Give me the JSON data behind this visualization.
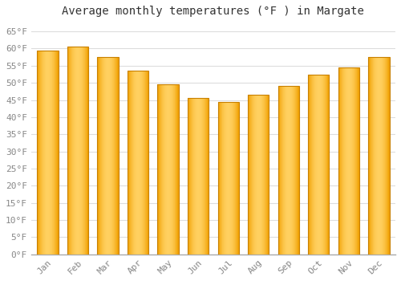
{
  "title": "Average monthly temperatures (°F ) in Margate",
  "months": [
    "Jan",
    "Feb",
    "Mar",
    "Apr",
    "May",
    "Jun",
    "Jul",
    "Aug",
    "Sep",
    "Oct",
    "Nov",
    "Dec"
  ],
  "values": [
    59.5,
    60.5,
    57.5,
    53.5,
    49.5,
    45.5,
    44.5,
    46.5,
    49.0,
    52.5,
    54.5,
    57.5
  ],
  "bar_color_center": "#FFD060",
  "bar_color_edge": "#F0A000",
  "bar_edge_color": "#C88000",
  "background_color": "#FFFFFF",
  "grid_color": "#DDDDDD",
  "ylim": [
    0,
    68
  ],
  "yticks": [
    0,
    5,
    10,
    15,
    20,
    25,
    30,
    35,
    40,
    45,
    50,
    55,
    60,
    65
  ],
  "ytick_labels": [
    "0°F",
    "5°F",
    "10°F",
    "15°F",
    "20°F",
    "25°F",
    "30°F",
    "35°F",
    "40°F",
    "45°F",
    "50°F",
    "55°F",
    "60°F",
    "65°F"
  ],
  "title_fontsize": 10,
  "tick_fontsize": 8,
  "font_family": "monospace",
  "tick_color": "#888888"
}
